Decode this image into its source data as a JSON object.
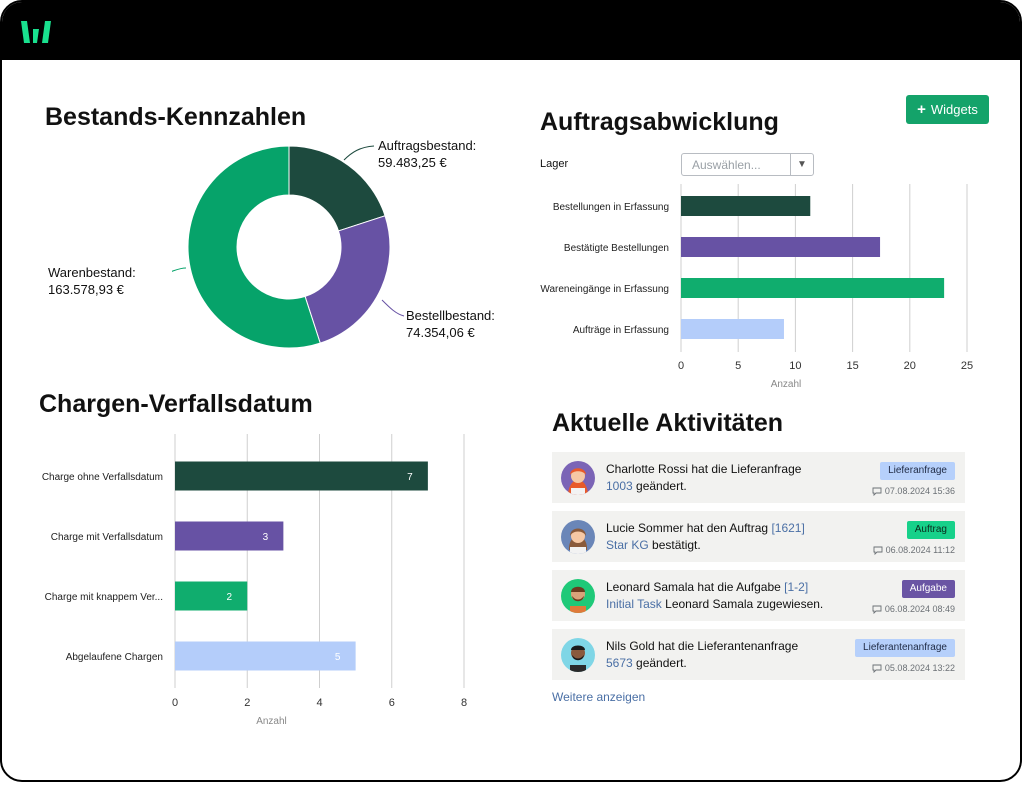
{
  "header": {
    "logo_icon": "brand-logo-icon"
  },
  "toolbar": {
    "widgets_label": "Widgets"
  },
  "bestand": {
    "title": "Bestands-Kennzahlen",
    "labels": {
      "auftrag_name": "Auftragsbestand:",
      "auftrag_value": "59.483,25 €",
      "bestell_name": "Bestellbestand:",
      "bestell_value": "74.354,06 €",
      "waren_name": "Warenbestand:",
      "waren_value": "163.578,93 €"
    }
  },
  "auftrag": {
    "title": "Auftragsabwicklung",
    "filter_label": "Lager",
    "filter_placeholder": "Auswählen..."
  },
  "chargen": {
    "title": "Chargen-Verfallsdatum"
  },
  "activities": {
    "title": "Aktuelle Aktivitäten",
    "more_label": "Weitere anzeigen",
    "items": [
      {
        "pre": "Charlotte Rossi hat die Lieferanfrage",
        "link1": "1003",
        "mid": "",
        "link2": "",
        "post": " geändert.",
        "badge": "Lieferanfrage",
        "badge_class": "blue",
        "date": "07.08.2024 15:36",
        "avatar": "woman-red-hair"
      },
      {
        "pre": "Lucie Sommer hat den Auftrag ",
        "link1": "[1621]",
        "mid": "",
        "link2": "Star KG",
        "post": " bestätigt.",
        "badge": "Auftrag",
        "badge_class": "green",
        "date": "06.08.2024 11:12",
        "avatar": "woman-brown-hair"
      },
      {
        "pre": "Leonard Samala hat die Aufgabe ",
        "link1": "[1-2]",
        "mid": "",
        "link2": "Initial Task",
        "post": " Leonard Samala zugewiesen.",
        "badge": "Aufgabe",
        "badge_class": "purple",
        "date": "06.08.2024 08:49",
        "avatar": "man-beard"
      },
      {
        "pre": "Nils Gold hat die Lieferantenanfrage",
        "link1": "5673",
        "mid": "",
        "link2": "",
        "post": " geändert.",
        "badge": "Lieferantenanfrage",
        "badge_class": "blue",
        "date": "05.08.2024 13:22",
        "avatar": "man-dark-skin"
      }
    ]
  },
  "chart_data": [
    {
      "type": "pie",
      "title": "Bestands-Kennzahlen",
      "donut": true,
      "categories": [
        "Auftragsbestand",
        "Bestellbestand",
        "Warenbestand"
      ],
      "values": [
        59483.25,
        74354.06,
        163578.93
      ],
      "colors": [
        "#1d4a3e",
        "#6752a4",
        "#06a36a"
      ]
    },
    {
      "type": "bar",
      "orientation": "horizontal",
      "title": "Auftragsabwicklung",
      "categories": [
        "Bestellungen in Erfassung",
        "Bestätigte Bestellungen",
        "Wareneingänge in Erfassung",
        "Aufträge in Erfassung"
      ],
      "values": [
        11.3,
        17.4,
        23,
        9
      ],
      "colors": [
        "#1d4a3e",
        "#6752a4",
        "#10ad6e",
        "#b4cdfa"
      ],
      "xlabel": "Anzahl",
      "xlim": [
        0,
        25
      ],
      "xticks": [
        0,
        5,
        10,
        15,
        20,
        25
      ],
      "grid": true
    },
    {
      "type": "bar",
      "orientation": "horizontal",
      "title": "Chargen-Verfallsdatum",
      "categories": [
        "Charge ohne Verfallsdatum",
        "Charge mit Verfallsdatum",
        "Charge mit knappem Ver...",
        "Abgelaufene Chargen"
      ],
      "values": [
        7,
        3,
        2,
        5
      ],
      "data_labels": [
        "7",
        "3",
        "2",
        "5"
      ],
      "colors": [
        "#1d4a3e",
        "#6752a4",
        "#10ad6e",
        "#b4cdfa"
      ],
      "xlabel": "Anzahl",
      "xlim": [
        0,
        8
      ],
      "xticks": [
        0,
        2,
        4,
        6,
        8
      ],
      "grid": true
    }
  ]
}
